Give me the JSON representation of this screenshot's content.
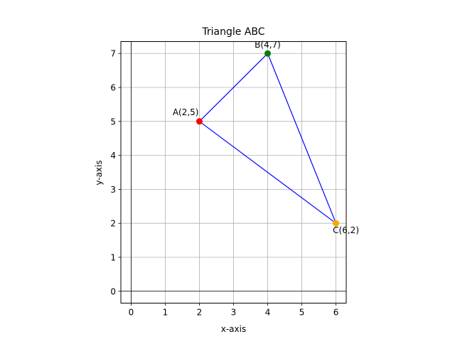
{
  "chart_data": {
    "type": "scatter",
    "title": "Triangle ABC",
    "xlabel": "x-axis",
    "ylabel": "y-axis",
    "xlim": [
      -0.3,
      6.3
    ],
    "ylim": [
      -0.35,
      7.35
    ],
    "xticks": [
      0,
      1,
      2,
      3,
      4,
      5,
      6
    ],
    "yticks": [
      0,
      1,
      2,
      3,
      4,
      5,
      6,
      7
    ],
    "grid": true,
    "zero_lines": true,
    "edge_color": "#0000ff",
    "points": [
      {
        "label": "A(2,5)",
        "x": 2,
        "y": 5,
        "color": "#ff0000",
        "label_position": "upper-left"
      },
      {
        "label": "B(4,7)",
        "x": 4,
        "y": 7,
        "color": "#008000",
        "label_position": "above"
      },
      {
        "label": "C(6,2)",
        "x": 6,
        "y": 2,
        "color": "#ffa500",
        "label_position": "below"
      }
    ],
    "edges": [
      [
        "A(2,5)",
        "B(4,7)"
      ],
      [
        "B(4,7)",
        "C(6,2)"
      ],
      [
        "C(6,2)",
        "A(2,5)"
      ]
    ]
  }
}
